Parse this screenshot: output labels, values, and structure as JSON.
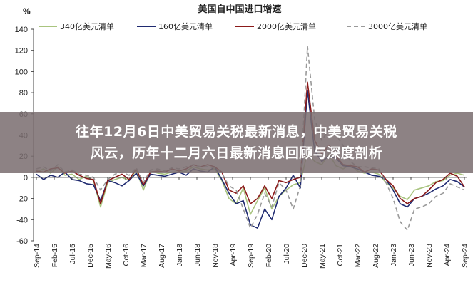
{
  "chart_data": {
    "type": "line",
    "title": "美国自中国进口增速",
    "ylabel": "%",
    "xlabel": "",
    "ylim": [
      -60,
      140
    ],
    "yticks": [
      -60,
      -40,
      -20,
      0,
      20,
      40,
      60,
      80,
      100,
      120,
      140
    ],
    "grid": false,
    "legend_position": "top",
    "x_tick_labels": [
      "Sep-14",
      "Feb-15",
      "Jul-15",
      "Dec-15",
      "May-16",
      "Oct-16",
      "Mar-17",
      "Aug-17",
      "Jan-18",
      "Jun-18",
      "Nov-18",
      "Apr-19",
      "Sep-19",
      "Feb-20",
      "Jul-20",
      "Dec-20",
      "May-21",
      "Oct-21",
      "Mar-22",
      "Aug-22",
      "Jan-23",
      "Jun-23",
      "Nov-23",
      "Apr-24",
      "Sep-24"
    ],
    "x": [
      "2014-09",
      "2014-11",
      "2015-01",
      "2015-03",
      "2015-05",
      "2015-07",
      "2015-09",
      "2015-11",
      "2016-01",
      "2016-03",
      "2016-05",
      "2016-07",
      "2016-09",
      "2016-11",
      "2017-01",
      "2017-03",
      "2017-05",
      "2017-07",
      "2017-09",
      "2017-11",
      "2018-01",
      "2018-03",
      "2018-05",
      "2018-07",
      "2018-09",
      "2018-11",
      "2019-01",
      "2019-03",
      "2019-05",
      "2019-07",
      "2019-09",
      "2019-11",
      "2020-01",
      "2020-03",
      "2020-05",
      "2020-07",
      "2020-09",
      "2020-11",
      "2021-01",
      "2021-03",
      "2021-05",
      "2021-07",
      "2021-09",
      "2021-11",
      "2022-01",
      "2022-03",
      "2022-05",
      "2022-07",
      "2022-09",
      "2022-11",
      "2023-01",
      "2023-03",
      "2023-05",
      "2023-07",
      "2023-09",
      "2023-11",
      "2024-01",
      "2024-03",
      "2024-05",
      "2024-07",
      "2024-09"
    ],
    "series": [
      {
        "name": "340亿美元清单",
        "color": "#a9c47f",
        "dash": "solid",
        "values": [
          5,
          8,
          4,
          10,
          2,
          3,
          -2,
          1,
          -3,
          -28,
          -5,
          -2,
          0,
          -3,
          7,
          -12,
          6,
          4,
          3,
          5,
          5,
          6,
          10,
          8,
          7,
          8,
          -3,
          -20,
          -25,
          -10,
          -35,
          -22,
          -10,
          -30,
          -18,
          -12,
          -7,
          -5,
          24,
          15,
          12,
          22,
          11,
          8,
          12,
          6,
          4,
          5,
          3,
          -5,
          -10,
          -18,
          -21,
          -12,
          -10,
          -8,
          -4,
          -3,
          2,
          4,
          2
        ]
      },
      {
        "name": "160亿美元清单",
        "color": "#1f2a70",
        "dash": "solid",
        "values": [
          3,
          -2,
          2,
          0,
          5,
          -2,
          -3,
          -6,
          -7,
          -22,
          -3,
          -5,
          -8,
          -3,
          4,
          -8,
          3,
          2,
          1,
          3,
          5,
          2,
          8,
          6,
          5,
          10,
          -2,
          -15,
          -25,
          -22,
          -45,
          -48,
          -30,
          -40,
          -18,
          -10,
          2,
          -10,
          82,
          25,
          15,
          20,
          18,
          11,
          10,
          8,
          5,
          2,
          1,
          -2,
          -12,
          -25,
          -28,
          -20,
          -18,
          -15,
          -11,
          -8,
          -2,
          -4,
          -9
        ]
      },
      {
        "name": "2000亿美元清单",
        "color": "#8b1a1a",
        "dash": "solid",
        "values": [
          6,
          5,
          8,
          9,
          4,
          6,
          2,
          -1,
          -2,
          -25,
          -3,
          0,
          3,
          -2,
          8,
          -7,
          5,
          6,
          5,
          8,
          6,
          8,
          12,
          10,
          12,
          10,
          5,
          -12,
          -15,
          -8,
          -25,
          -20,
          -8,
          -20,
          -3,
          -5,
          -2,
          0,
          90,
          35,
          22,
          30,
          20,
          12,
          11,
          10,
          5,
          8,
          7,
          -2,
          -8,
          -20,
          -25,
          -20,
          -18,
          -12,
          -5,
          -2,
          4,
          1,
          -9
        ]
      },
      {
        "name": "3000亿美元清单",
        "color": "#9a9a9a",
        "dash": "dashed",
        "values": [
          8,
          10,
          6,
          12,
          5,
          7,
          3,
          2,
          0,
          -12,
          -2,
          3,
          5,
          2,
          9,
          -5,
          7,
          8,
          6,
          9,
          8,
          10,
          12,
          10,
          10,
          9,
          4,
          -8,
          -12,
          -30,
          -48,
          -35,
          -15,
          -28,
          -5,
          -12,
          -30,
          -8,
          124,
          55,
          35,
          45,
          40,
          30,
          15,
          10,
          10,
          9,
          8,
          -5,
          -20,
          -42,
          -50,
          -30,
          -28,
          -25,
          -18,
          -15,
          -6,
          -9,
          -12
        ]
      }
    ]
  },
  "overlay": {
    "line1": "往年12月6日中美贸易关税最新消息，中美贸易关税",
    "line2": "风云，历年十二月六日最新消息回顾与深度剖析"
  }
}
